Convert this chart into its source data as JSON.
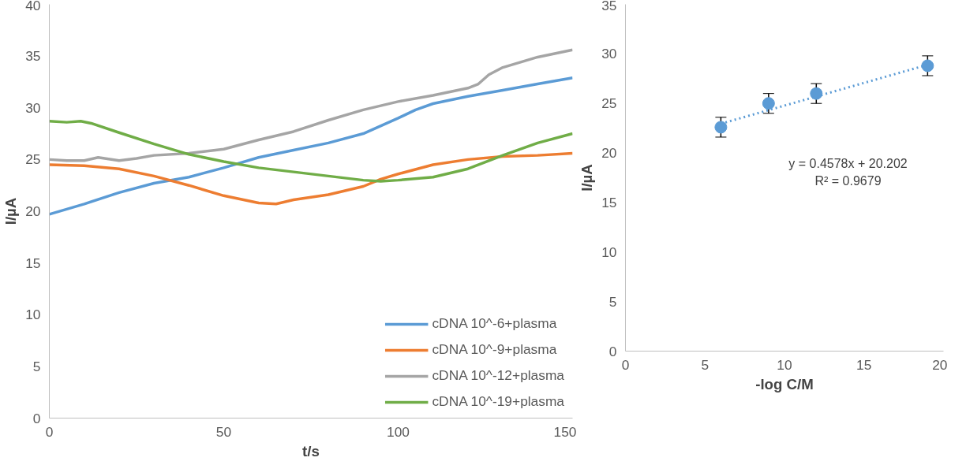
{
  "chart_data": [
    {
      "type": "line",
      "xlabel": "t/s",
      "ylabel": "I/µA",
      "xlim": [
        0,
        150
      ],
      "ylim": [
        0,
        40
      ],
      "xticks": [
        0,
        50,
        100,
        150
      ],
      "yticks": [
        0,
        5,
        10,
        15,
        20,
        25,
        30,
        35,
        40
      ],
      "legend": "bottom right",
      "line_style": "solid",
      "series": [
        {
          "name": "cDNA 10^-6+plasma",
          "color": "#5b9bd5",
          "x": [
            0,
            5,
            10,
            20,
            30,
            40,
            50,
            60,
            70,
            80,
            90,
            100,
            105,
            110,
            120,
            130,
            140,
            150
          ],
          "values": [
            19.7,
            20.2,
            20.7,
            21.8,
            22.7,
            23.3,
            24.2,
            25.2,
            25.9,
            26.6,
            27.5,
            29.0,
            29.8,
            30.4,
            31.1,
            31.7,
            32.3,
            32.9
          ]
        },
        {
          "name": "cDNA 10^-9+plasma",
          "color": "#ed7d31",
          "x": [
            0,
            10,
            20,
            30,
            40,
            50,
            60,
            65,
            70,
            80,
            90,
            95,
            100,
            110,
            120,
            130,
            140,
            150
          ],
          "values": [
            24.5,
            24.4,
            24.1,
            23.4,
            22.5,
            21.5,
            20.8,
            20.7,
            21.1,
            21.6,
            22.4,
            23.1,
            23.6,
            24.5,
            25.0,
            25.3,
            25.4,
            25.6
          ]
        },
        {
          "name": "cDNA 10^-12+plasma",
          "color": "#a5a5a5",
          "x": [
            0,
            5,
            10,
            14,
            20,
            25,
            30,
            40,
            50,
            60,
            70,
            80,
            90,
            100,
            110,
            120,
            123,
            126,
            130,
            140,
            150
          ],
          "values": [
            25.0,
            24.9,
            24.9,
            25.2,
            24.9,
            25.1,
            25.4,
            25.6,
            26.0,
            26.9,
            27.7,
            28.8,
            29.8,
            30.6,
            31.2,
            31.9,
            32.3,
            33.2,
            33.9,
            34.9,
            35.6
          ]
        },
        {
          "name": "cDNA 10^-19+plasma",
          "color": "#70ad47",
          "x": [
            0,
            5,
            9,
            12,
            20,
            30,
            40,
            50,
            60,
            70,
            80,
            90,
            95,
            100,
            110,
            120,
            130,
            140,
            150
          ],
          "values": [
            28.7,
            28.6,
            28.7,
            28.5,
            27.6,
            26.5,
            25.5,
            24.8,
            24.2,
            23.8,
            23.4,
            23.0,
            22.9,
            23.0,
            23.3,
            24.1,
            25.4,
            26.6,
            27.5
          ]
        }
      ]
    },
    {
      "type": "scatter",
      "xlabel": "-log C/M",
      "ylabel": "I/µA",
      "xlim": [
        0,
        20
      ],
      "ylim": [
        0,
        35
      ],
      "xticks": [
        0,
        5,
        10,
        15,
        20
      ],
      "yticks": [
        0,
        5,
        10,
        15,
        20,
        25,
        30,
        35
      ],
      "annotations": [
        "y = 0.4578x + 20.202",
        "R² = 0.9679"
      ],
      "series": [
        {
          "type": "scatter",
          "marker": "circle",
          "color": "#5b9bd5",
          "x": [
            6,
            9,
            12,
            19
          ],
          "values": [
            22.6,
            25.0,
            26.0,
            28.8
          ],
          "errors": [
            1.0,
            1.0,
            1.0,
            1.0
          ]
        },
        {
          "type": "line",
          "line_style": "dotted",
          "color": "#5b9bd5",
          "x": [
            6,
            19
          ],
          "values": [
            22.95,
            28.9
          ]
        }
      ]
    }
  ]
}
